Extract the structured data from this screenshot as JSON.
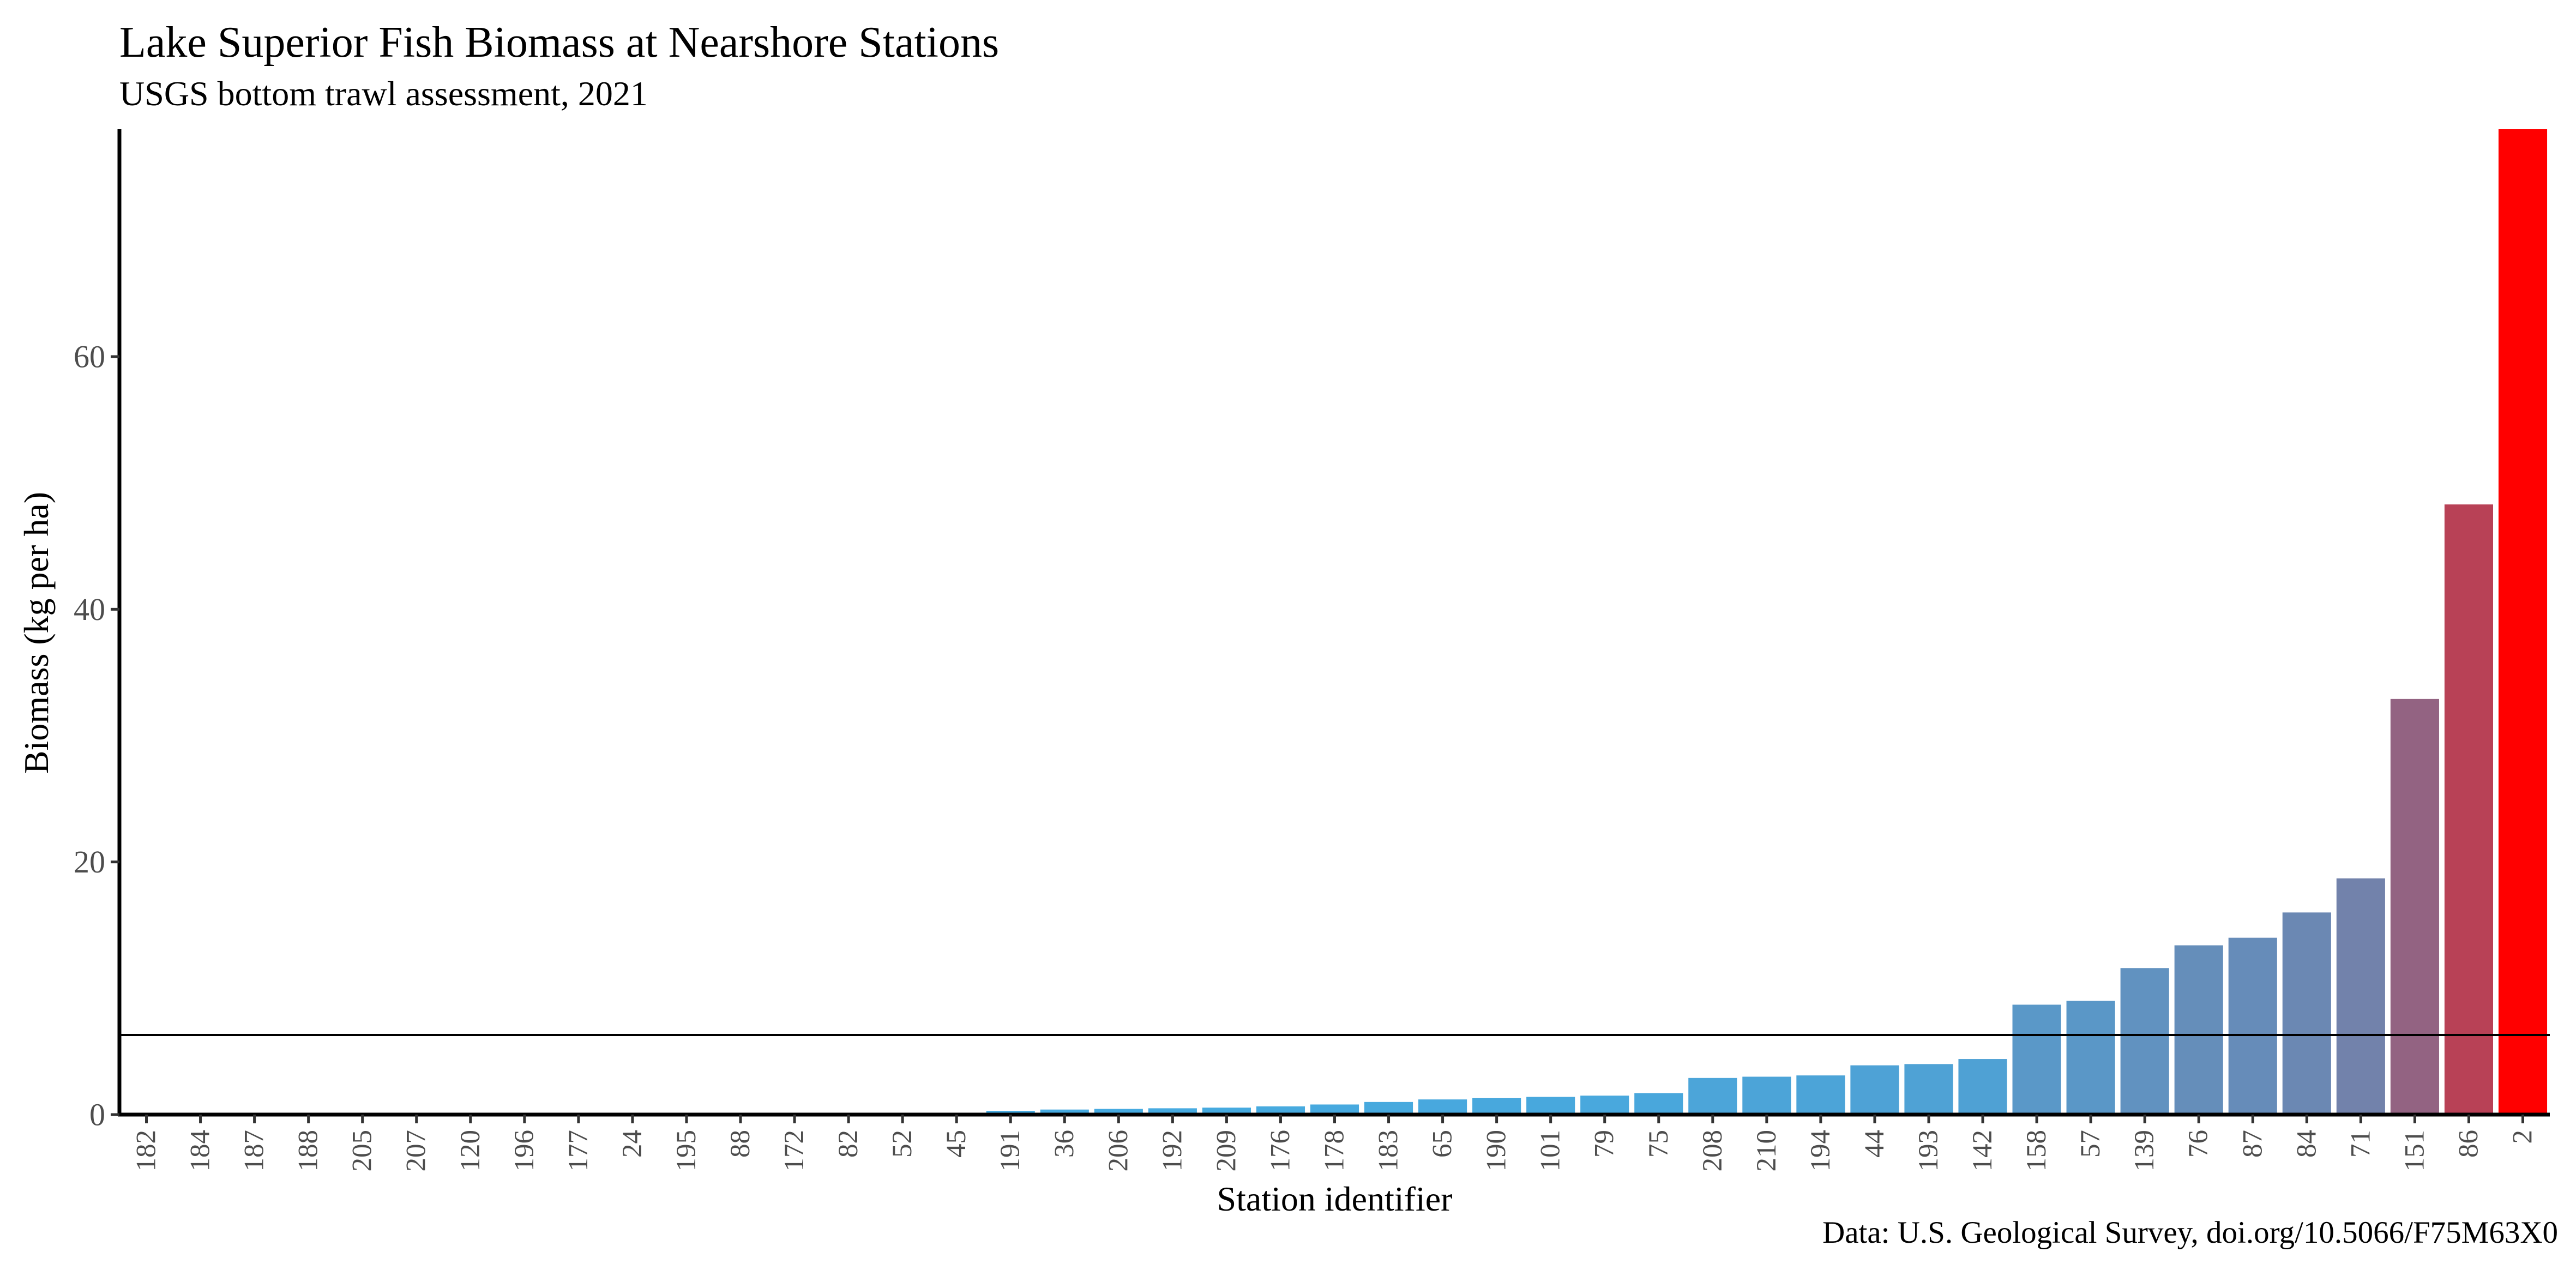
{
  "chart_data": {
    "type": "bar",
    "title": "Lake Superior Fish Biomass at Nearshore Stations",
    "subtitle": "USGS bottom trawl assessment, 2021",
    "caption": "Data: U.S. Geological Survey, doi.org/10.5066/F75M63X0",
    "xlabel": "Station identifier",
    "ylabel": "Biomass (kg per ha)",
    "ylim": [
      0,
      78
    ],
    "yticks": [
      0,
      20,
      40,
      60
    ],
    "ytick_labels": [
      "0",
      "20",
      "40",
      "60"
    ],
    "grid": false,
    "legend": "none",
    "reference_line": {
      "y": 6.3,
      "color": "#000000"
    },
    "colors": {
      "low": "#45ABE1",
      "high": "#FF0000"
    },
    "categories": [
      "182",
      "184",
      "187",
      "188",
      "205",
      "207",
      "120",
      "196",
      "177",
      "24",
      "195",
      "88",
      "172",
      "82",
      "52",
      "45",
      "191",
      "36",
      "206",
      "192",
      "209",
      "176",
      "178",
      "183",
      "65",
      "190",
      "101",
      "79",
      "75",
      "208",
      "210",
      "194",
      "44",
      "193",
      "142",
      "158",
      "57",
      "139",
      "76",
      "87",
      "84",
      "71",
      "151",
      "86",
      "2"
    ],
    "values": [
      0,
      0,
      0,
      0,
      0,
      0,
      0,
      0,
      0,
      0,
      0,
      0,
      0,
      0,
      0.05,
      0.15,
      0.3,
      0.4,
      0.45,
      0.5,
      0.55,
      0.65,
      0.8,
      1.0,
      1.2,
      1.3,
      1.4,
      1.5,
      1.7,
      2.9,
      3.0,
      3.1,
      3.9,
      4.0,
      4.4,
      8.7,
      9.0,
      11.6,
      13.4,
      14.0,
      16.0,
      18.7,
      32.9,
      48.3,
      78.0
    ]
  }
}
